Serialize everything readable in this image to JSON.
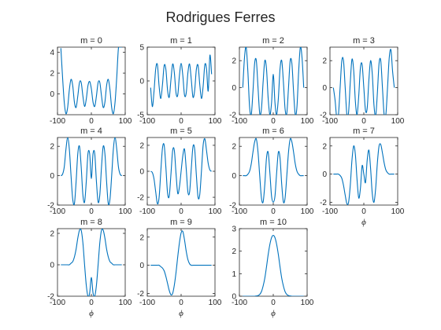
{
  "figure": {
    "title": "Rodrigues Ferres"
  },
  "chart_data": {
    "type": "line",
    "title": "Rodrigues Ferres",
    "series_color": "#0072BD",
    "x_domain": [
      -90,
      90
    ],
    "panels": [
      {
        "title": "m = 0",
        "xlim": [
          -100,
          100
        ],
        "ylim": [
          -2,
          4.5
        ],
        "xticks": [
          -100,
          0,
          100
        ],
        "yticks": [
          0,
          2,
          4
        ],
        "xlabel": "",
        "x": [
          -90,
          -85,
          -80,
          -75,
          -70,
          -65,
          -60,
          -55,
          -50,
          -45,
          -40,
          -35,
          -30,
          -25,
          -20,
          -15,
          -10,
          -5,
          0,
          5,
          10,
          15,
          20,
          25,
          30,
          35,
          40,
          45,
          50,
          55,
          60,
          65,
          70,
          75,
          80,
          85,
          90
        ],
        "y": [
          4.4,
          1.6,
          -0.8,
          -1.9,
          -1.3,
          0.4,
          1.4,
          0.8,
          -0.8,
          -1.3,
          -0.2,
          1.1,
          1.1,
          -0.2,
          -1.2,
          -0.5,
          0.8,
          1.2,
          0.5,
          -0.8,
          -1.2,
          -0.2,
          1.1,
          1.1,
          -0.2,
          -1.3,
          -0.8,
          0.8,
          1.4,
          0.4,
          -1.3,
          -1.9,
          -0.8,
          1.6,
          4.4,
          4.5,
          4.5
        ]
      },
      {
        "title": "m = 1",
        "xlim": [
          -100,
          100
        ],
        "ylim": [
          -5,
          5
        ],
        "xticks": [
          -100,
          0,
          100
        ],
        "yticks": [
          -5,
          0,
          5
        ],
        "xlabel": "",
        "x": [
          -90,
          -85,
          -80,
          -75,
          -70,
          -65,
          -60,
          -55,
          -50,
          -45,
          -40,
          -35,
          -30,
          -25,
          -20,
          -15,
          -10,
          -5,
          0,
          5,
          10,
          15,
          20,
          25,
          30,
          35,
          40,
          45,
          50,
          55,
          60,
          65,
          70,
          75,
          80,
          85,
          90
        ],
        "y": [
          -1.0,
          -3.8,
          -1.5,
          1.8,
          2.4,
          -0.8,
          -2.6,
          -0.5,
          2.3,
          1.7,
          -1.4,
          -2.4,
          0.2,
          2.5,
          1.2,
          -1.8,
          -2.1,
          0.8,
          2.6,
          0.8,
          -2.1,
          -1.8,
          1.2,
          2.5,
          0.2,
          -2.4,
          -1.4,
          1.7,
          2.3,
          -0.5,
          -2.6,
          -0.8,
          2.4,
          1.8,
          -1.5,
          3.8,
          1.0
        ]
      },
      {
        "title": "m = 2",
        "xlim": [
          -100,
          100
        ],
        "ylim": [
          -2,
          3
        ],
        "xticks": [
          -100,
          0,
          100
        ],
        "yticks": [
          -2,
          0,
          2
        ],
        "xlabel": "",
        "x": [
          -90,
          -85,
          -80,
          -75,
          -70,
          -65,
          -60,
          -55,
          -50,
          -45,
          -40,
          -35,
          -30,
          -25,
          -20,
          -15,
          -10,
          -5,
          0,
          5,
          10,
          15,
          20,
          25,
          30,
          35,
          40,
          45,
          50,
          55,
          60,
          65,
          70,
          75,
          80,
          85,
          90
        ],
        "y": [
          0.0,
          2.2,
          3.0,
          1.2,
          -1.4,
          -2.0,
          -0.3,
          1.8,
          2.0,
          0.0,
          -1.9,
          -1.6,
          0.4,
          2.0,
          1.4,
          -0.8,
          -2.0,
          -1.1,
          1.0,
          -1.1,
          -2.0,
          -0.8,
          1.4,
          2.0,
          0.4,
          -1.6,
          -1.9,
          0.0,
          2.0,
          1.8,
          -0.3,
          -2.0,
          -1.4,
          1.2,
          3.0,
          2.2,
          0.0
        ]
      },
      {
        "title": "m = 3",
        "xlim": [
          -100,
          100
        ],
        "ylim": [
          -2,
          3
        ],
        "xticks": [
          -100,
          0,
          100
        ],
        "yticks": [
          -2,
          0,
          2
        ],
        "xlabel": "",
        "x": [
          -90,
          -85,
          -80,
          -75,
          -70,
          -65,
          -60,
          -55,
          -50,
          -45,
          -40,
          -35,
          -30,
          -25,
          -20,
          -15,
          -10,
          -5,
          0,
          5,
          10,
          15,
          20,
          25,
          30,
          35,
          40,
          45,
          50,
          55,
          60,
          65,
          70,
          75,
          80,
          85,
          90
        ],
        "y": [
          0.0,
          -0.9,
          -2.2,
          -2.0,
          0.0,
          2.0,
          2.0,
          0.0,
          -2.0,
          -1.8,
          0.4,
          2.1,
          1.3,
          -1.0,
          -2.0,
          -0.6,
          1.5,
          1.7,
          0.0,
          -1.7,
          -1.5,
          0.6,
          2.0,
          1.0,
          -1.3,
          -2.1,
          -0.4,
          1.8,
          2.0,
          0.0,
          -2.0,
          -2.0,
          0.0,
          2.2,
          2.8,
          1.2,
          0.0
        ]
      },
      {
        "title": "m = 4",
        "xlim": [
          -100,
          100
        ],
        "ylim": [
          -2,
          2.6
        ],
        "xticks": [
          -100,
          0,
          100
        ],
        "yticks": [
          -2,
          0,
          2
        ],
        "xlabel": "",
        "x": [
          -90,
          -85,
          -80,
          -75,
          -70,
          -65,
          -60,
          -55,
          -50,
          -45,
          -40,
          -35,
          -30,
          -25,
          -20,
          -15,
          -10,
          -5,
          0,
          5,
          10,
          15,
          20,
          25,
          30,
          35,
          40,
          45,
          50,
          55,
          60,
          65,
          70,
          75,
          80,
          85,
          90
        ],
        "y": [
          0.0,
          0.1,
          0.6,
          1.8,
          2.6,
          1.8,
          0.0,
          -1.6,
          -1.9,
          -0.4,
          1.5,
          2.0,
          0.6,
          -1.3,
          -1.8,
          -0.4,
          1.5,
          1.5,
          -0.2,
          1.5,
          1.5,
          -0.4,
          -1.8,
          -1.3,
          0.6,
          2.0,
          1.5,
          -0.4,
          -1.9,
          -1.6,
          0.0,
          1.8,
          2.6,
          1.8,
          0.6,
          0.1,
          0.0
        ]
      },
      {
        "title": "m = 5",
        "xlim": [
          -100,
          100
        ],
        "ylim": [
          -2.6,
          2.6
        ],
        "xticks": [
          -100,
          0,
          100
        ],
        "yticks": [
          -2,
          0,
          2
        ],
        "xlabel": "",
        "x": [
          -90,
          -85,
          -80,
          -75,
          -70,
          -65,
          -60,
          -55,
          -50,
          -45,
          -40,
          -35,
          -30,
          -25,
          -20,
          -15,
          -10,
          -5,
          0,
          5,
          10,
          15,
          20,
          25,
          30,
          35,
          40,
          45,
          50,
          55,
          60,
          65,
          70,
          75,
          80,
          85,
          90
        ],
        "y": [
          0.0,
          -0.1,
          -0.6,
          -1.6,
          -2.5,
          -2.0,
          0.0,
          1.8,
          2.0,
          0.3,
          -1.7,
          -1.9,
          -0.2,
          1.6,
          1.6,
          -0.2,
          -1.7,
          -1.2,
          0.0,
          1.2,
          1.7,
          0.2,
          -1.6,
          -1.6,
          0.2,
          1.9,
          1.7,
          -0.3,
          -2.0,
          -1.8,
          0.0,
          2.0,
          2.5,
          1.6,
          0.6,
          0.1,
          0.0
        ]
      },
      {
        "title": "m = 6",
        "xlim": [
          -100,
          100
        ],
        "ylim": [
          -2,
          2.6
        ],
        "xticks": [
          -100,
          0,
          100
        ],
        "yticks": [
          -2,
          0,
          2
        ],
        "xlabel": "",
        "x": [
          -90,
          -85,
          -80,
          -75,
          -70,
          -65,
          -60,
          -55,
          -50,
          -45,
          -40,
          -35,
          -30,
          -25,
          -20,
          -15,
          -10,
          -5,
          0,
          5,
          10,
          15,
          20,
          25,
          30,
          35,
          40,
          45,
          50,
          55,
          60,
          65,
          70,
          75,
          80,
          85,
          90
        ],
        "y": [
          0.0,
          0.0,
          0.0,
          0.1,
          0.3,
          0.8,
          1.6,
          2.3,
          2.5,
          1.6,
          0.0,
          -1.5,
          -1.8,
          -0.6,
          1.2,
          1.6,
          0.2,
          -1.4,
          -1.8,
          -1.4,
          0.2,
          1.6,
          1.2,
          -0.6,
          -1.8,
          -1.5,
          0.0,
          1.6,
          2.5,
          2.3,
          1.6,
          0.8,
          0.3,
          0.1,
          0.0,
          0.0,
          0.0
        ]
      },
      {
        "title": "m = 7",
        "xlim": [
          -100,
          100
        ],
        "ylim": [
          -2.2,
          2.6
        ],
        "xticks": [
          -100,
          0,
          100
        ],
        "yticks": [
          -2,
          0,
          2
        ],
        "xlabel": "ϕ",
        "x": [
          -90,
          -85,
          -80,
          -75,
          -70,
          -65,
          -60,
          -55,
          -50,
          -45,
          -40,
          -35,
          -30,
          -25,
          -20,
          -15,
          -10,
          -5,
          0,
          5,
          10,
          15,
          20,
          25,
          30,
          35,
          40,
          45,
          50,
          55,
          60,
          65,
          70,
          75,
          80,
          85,
          90
        ],
        "y": [
          0.0,
          0.0,
          0.0,
          0.0,
          -0.1,
          -0.3,
          -0.8,
          -1.5,
          -2.1,
          -2.0,
          -0.8,
          1.0,
          2.0,
          1.4,
          -0.4,
          -1.7,
          -1.0,
          0.6,
          0.0,
          -0.6,
          1.0,
          1.7,
          0.4,
          -1.4,
          -2.0,
          -1.0,
          0.8,
          2.0,
          2.1,
          1.5,
          0.8,
          0.3,
          0.1,
          0.0,
          0.0,
          0.0,
          0.0
        ]
      },
      {
        "title": "m = 8",
        "xlim": [
          -100,
          100
        ],
        "ylim": [
          -2,
          2.3
        ],
        "xticks": [
          -100,
          0,
          100
        ],
        "yticks": [
          -2,
          0,
          2
        ],
        "xlabel": "ϕ",
        "x": [
          -90,
          -85,
          -80,
          -75,
          -70,
          -65,
          -60,
          -55,
          -50,
          -45,
          -40,
          -35,
          -30,
          -25,
          -20,
          -15,
          -10,
          -5,
          0,
          5,
          10,
          15,
          20,
          25,
          30,
          35,
          40,
          45,
          50,
          55,
          60,
          65,
          70,
          75,
          80,
          85,
          90
        ],
        "y": [
          0.0,
          0.0,
          0.0,
          0.0,
          0.0,
          0.0,
          0.1,
          0.2,
          0.5,
          1.0,
          1.7,
          2.2,
          2.2,
          1.4,
          0.0,
          -1.3,
          -2.0,
          -1.8,
          -0.8,
          -1.8,
          -2.0,
          -1.3,
          0.0,
          1.4,
          2.2,
          2.2,
          1.7,
          1.0,
          0.5,
          0.2,
          0.1,
          0.0,
          0.0,
          0.0,
          0.0,
          0.0,
          0.0
        ]
      },
      {
        "title": "m = 9",
        "xlim": [
          -100,
          100
        ],
        "ylim": [
          -2.2,
          2.6
        ],
        "xticks": [
          -100,
          0,
          100
        ],
        "yticks": [
          -2,
          0,
          2
        ],
        "xlabel": "ϕ",
        "x": [
          -90,
          -85,
          -80,
          -75,
          -70,
          -65,
          -60,
          -55,
          -50,
          -45,
          -40,
          -35,
          -30,
          -25,
          -20,
          -15,
          -10,
          -5,
          0,
          5,
          10,
          15,
          20,
          25,
          30,
          35,
          40,
          45,
          50,
          55,
          60,
          65,
          70,
          75,
          80,
          85,
          90
        ],
        "y": [
          0.0,
          0.0,
          0.0,
          0.0,
          0.0,
          0.0,
          -0.1,
          -0.2,
          -0.4,
          -0.8,
          -1.3,
          -1.8,
          -2.1,
          -2.0,
          -1.4,
          -0.5,
          0.6,
          1.6,
          2.3,
          2.4,
          1.8,
          1.0,
          0.4,
          0.1,
          0.0,
          0.0,
          0.0,
          0.0,
          0.0,
          0.0,
          0.0,
          0.0,
          0.0,
          0.0,
          0.0,
          0.0,
          0.0
        ]
      },
      {
        "title": "m = 10",
        "xlim": [
          -100,
          100
        ],
        "ylim": [
          0,
          3
        ],
        "xticks": [
          -100,
          0,
          100
        ],
        "yticks": [
          0,
          1,
          2,
          3
        ],
        "xlabel": "ϕ",
        "x": [
          -90,
          -85,
          -80,
          -75,
          -70,
          -65,
          -60,
          -55,
          -50,
          -45,
          -40,
          -35,
          -30,
          -25,
          -20,
          -15,
          -10,
          -5,
          0,
          5,
          10,
          15,
          20,
          25,
          30,
          35,
          40,
          45,
          50,
          55,
          60,
          65,
          70,
          75,
          80,
          85,
          90
        ],
        "y": [
          0.0,
          0.0,
          0.0,
          0.0,
          0.0,
          0.0,
          0.0,
          0.0,
          0.01,
          0.03,
          0.08,
          0.2,
          0.45,
          0.8,
          1.3,
          1.85,
          2.3,
          2.6,
          2.7,
          2.6,
          2.3,
          1.85,
          1.3,
          0.8,
          0.45,
          0.2,
          0.08,
          0.03,
          0.01,
          0.0,
          0.0,
          0.0,
          0.0,
          0.0,
          0.0,
          0.0,
          0.0
        ]
      }
    ]
  }
}
